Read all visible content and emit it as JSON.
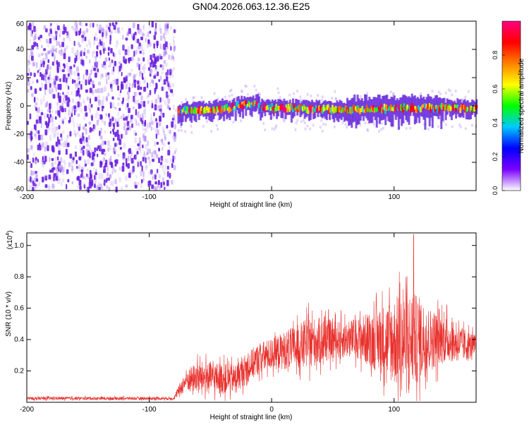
{
  "title": "GN04.2026.063.12.36.E25",
  "colors": {
    "line": "#e8322e",
    "frame": "#000000",
    "noise": "#7a2ee6"
  },
  "chart_data": [
    {
      "type": "heatmap",
      "name": "spectrogram",
      "xlabel": "Height of straight line (km)",
      "ylabel": "Frequency (Hz)",
      "xlim": [
        -200,
        167
      ],
      "ylim": [
        -60,
        60
      ],
      "xticks": [
        -200,
        -100,
        0,
        100
      ],
      "yticks": [
        60,
        40,
        20,
        0,
        -20,
        -40,
        -60
      ],
      "noise_region_x": [
        -200,
        -77
      ],
      "signal_region_x": [
        -77,
        167
      ],
      "colorbar": {
        "label": "Normalized spectral amplitude",
        "range": [
          0,
          1
        ],
        "ticks": [
          "0.0",
          "0.2",
          "0.4",
          "0.6",
          "0.8"
        ],
        "colormap": [
          "#ffffff",
          "#7a00ff",
          "#0000ff",
          "#00c8ff",
          "#00ff00",
          "#ffff00",
          "#ff8000",
          "#ff0000",
          "#ff0080"
        ]
      }
    },
    {
      "type": "line",
      "name": "snr",
      "xlabel": "Height of straight line (km)",
      "ylabel": "SNR (10 * v/v)",
      "multiplier": "(x10",
      "multiplier_exp": "4",
      "multiplier_close": ")",
      "xlim": [
        -200,
        167
      ],
      "ylim": [
        0,
        1.08
      ],
      "xticks": [
        -200,
        -100,
        0,
        100
      ],
      "yticks": [
        "0.2",
        "0.4",
        "0.6",
        "0.8",
        "1.0"
      ],
      "envelope": {
        "x": [
          -200,
          -80,
          -70,
          -60,
          -50,
          -40,
          -30,
          -20,
          -10,
          0,
          10,
          20,
          30,
          40,
          50,
          60,
          70,
          80,
          90,
          100,
          110,
          120,
          130,
          140,
          150,
          160,
          167
        ],
        "mean": [
          0.025,
          0.025,
          0.14,
          0.16,
          0.16,
          0.15,
          0.15,
          0.22,
          0.28,
          0.31,
          0.33,
          0.35,
          0.38,
          0.39,
          0.4,
          0.4,
          0.41,
          0.4,
          0.4,
          0.39,
          0.38,
          0.4,
          0.4,
          0.41,
          0.38,
          0.36,
          0.37
        ],
        "amp": [
          0.01,
          0.01,
          0.07,
          0.1,
          0.1,
          0.1,
          0.09,
          0.1,
          0.1,
          0.1,
          0.12,
          0.14,
          0.16,
          0.15,
          0.12,
          0.12,
          0.13,
          0.18,
          0.22,
          0.28,
          0.34,
          0.28,
          0.2,
          0.16,
          0.12,
          0.1,
          0.06
        ]
      },
      "peak": {
        "x": 116,
        "y": 1.07
      }
    }
  ]
}
